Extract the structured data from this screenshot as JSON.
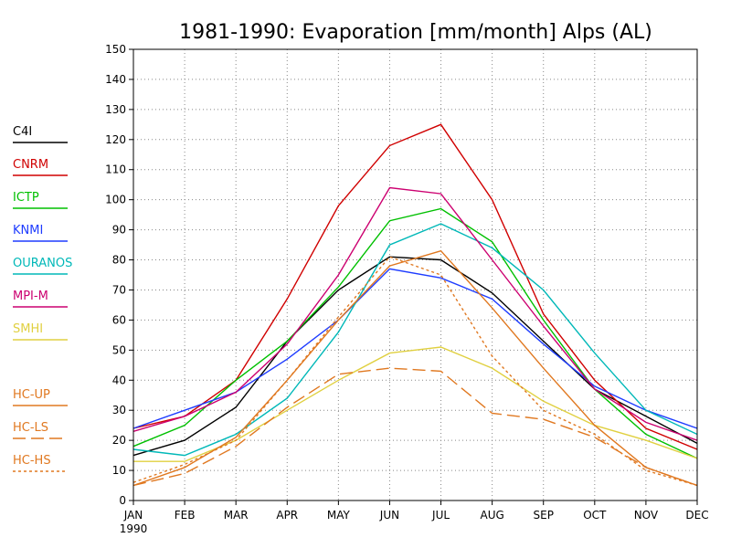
{
  "chart_data": {
    "type": "line",
    "title": "1981-1990: Evaporation [mm/month] Alps (AL)",
    "categories": [
      "JAN",
      "FEB",
      "MAR",
      "APR",
      "MAY",
      "JUN",
      "JUL",
      "AUG",
      "SEP",
      "OCT",
      "NOV",
      "DEC"
    ],
    "x_sublabel": "1990",
    "ylim": [
      0,
      150
    ],
    "yticks": [
      0,
      10,
      20,
      30,
      40,
      50,
      60,
      70,
      80,
      90,
      100,
      110,
      120,
      130,
      140,
      150
    ],
    "grid": true,
    "legend_position": "left",
    "series": [
      {
        "name": "C4I",
        "color": "#000000",
        "dash": "solid",
        "values": [
          15,
          20,
          31,
          53,
          70,
          81,
          80,
          69,
          53,
          37,
          28,
          19
        ]
      },
      {
        "name": "CNRM",
        "color": "#d00000",
        "dash": "solid",
        "values": [
          24,
          28,
          40,
          67,
          98,
          118,
          125,
          100,
          62,
          40,
          24,
          17
        ]
      },
      {
        "name": "ICTP",
        "color": "#00c000",
        "dash": "solid",
        "values": [
          18,
          25,
          40,
          53,
          71,
          93,
          97,
          86,
          60,
          37,
          22,
          14
        ]
      },
      {
        "name": "KNMI",
        "color": "#1e3cff",
        "dash": "solid",
        "values": [
          24,
          30,
          36,
          47,
          60,
          77,
          74,
          67,
          52,
          38,
          30,
          24
        ]
      },
      {
        "name": "OURANOS",
        "color": "#00b8b8",
        "dash": "solid",
        "values": [
          17,
          15,
          22,
          34,
          56,
          85,
          92,
          84,
          70,
          49,
          30,
          22
        ]
      },
      {
        "name": "MPI-M",
        "color": "#cc0070",
        "dash": "solid",
        "values": [
          23,
          28,
          36,
          52,
          75,
          104,
          102,
          80,
          58,
          37,
          26,
          20
        ]
      },
      {
        "name": "SMHI",
        "color": "#e0d040",
        "dash": "solid",
        "values": [
          13,
          13,
          20,
          30,
          40,
          49,
          51,
          44,
          33,
          25,
          20,
          14
        ]
      },
      {
        "name": "HC-UP",
        "color": "#e07820",
        "dash": "solid",
        "values": [
          5,
          11,
          21,
          40,
          60,
          78,
          83,
          64,
          44,
          25,
          11,
          5
        ]
      },
      {
        "name": "HC-LS",
        "color": "#e07820",
        "dash": "long",
        "values": [
          5,
          9,
          18,
          31,
          42,
          44,
          43,
          29,
          27,
          21,
          11,
          5
        ]
      },
      {
        "name": "HC-HS",
        "color": "#e07820",
        "dash": "short",
        "values": [
          6,
          12,
          20,
          40,
          61,
          81,
          75,
          48,
          30,
          22,
          10,
          5
        ]
      }
    ]
  }
}
